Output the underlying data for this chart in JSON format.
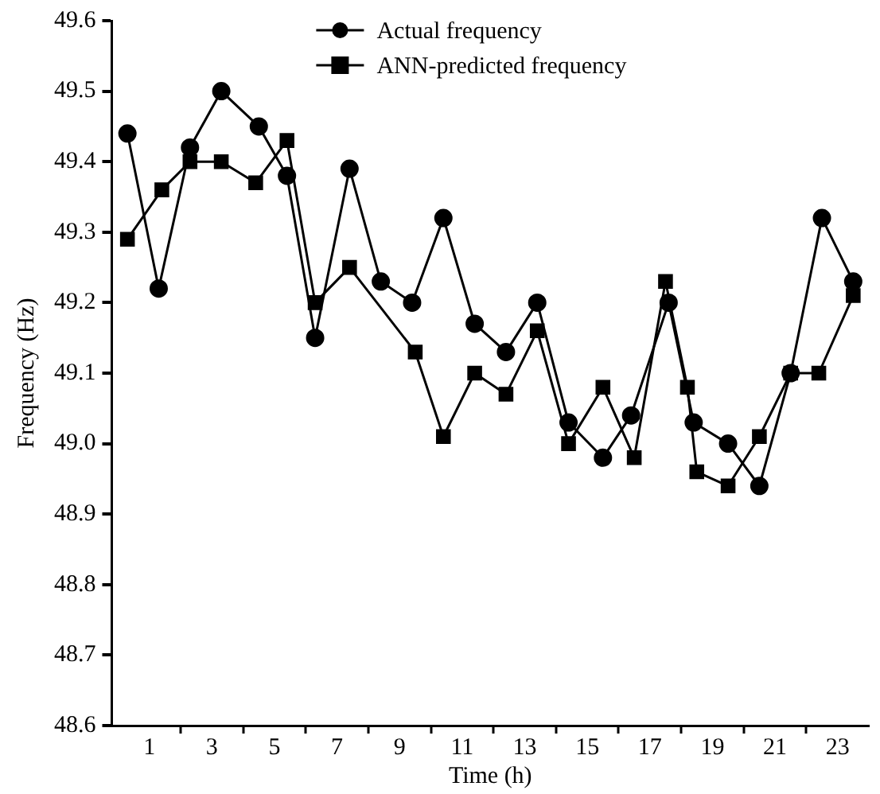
{
  "chart_data": {
    "type": "line",
    "xlabel": "Time (h)",
    "ylabel": "Frequency (Hz)",
    "xlim": [
      -0.2,
      24
    ],
    "xticks": [
      {
        "value": 1,
        "label": "1"
      },
      {
        "value": 2,
        "label": null
      },
      {
        "value": 3,
        "label": "3"
      },
      {
        "value": 4,
        "label": null
      },
      {
        "value": 5,
        "label": "5"
      },
      {
        "value": 6,
        "label": null
      },
      {
        "value": 7,
        "label": "7"
      },
      {
        "value": 8,
        "label": null
      },
      {
        "value": 9,
        "label": "9"
      },
      {
        "value": 10,
        "label": null
      },
      {
        "value": 11,
        "label": "11"
      },
      {
        "value": 12,
        "label": null
      },
      {
        "value": 13,
        "label": "13"
      },
      {
        "value": 14,
        "label": null
      },
      {
        "value": 15,
        "label": "15"
      },
      {
        "value": 16,
        "label": null
      },
      {
        "value": 17,
        "label": "17"
      },
      {
        "value": 18,
        "label": null
      },
      {
        "value": 19,
        "label": "19"
      },
      {
        "value": 20,
        "label": null
      },
      {
        "value": 21,
        "label": "21"
      },
      {
        "value": 22,
        "label": null
      },
      {
        "value": 23,
        "label": "23"
      }
    ],
    "ylim": [
      48.6,
      49.6
    ],
    "yticks": [
      48.6,
      48.7,
      48.8,
      48.9,
      {
        "value": 49,
        "label": "49.0"
      },
      49.1,
      49.2,
      49.3,
      49.4,
      49.5,
      49.6
    ],
    "legend": "top",
    "grid": false,
    "line_style": "solid",
    "series": [
      {
        "name": "Actual frequency",
        "color": "#000000",
        "marker": "circle",
        "x": [
          0.3,
          1.3,
          2.3,
          3.3,
          4.5,
          5.4,
          6.3,
          7.4,
          8.4,
          9.4,
          10.4,
          11.4,
          12.4,
          13.4,
          14.4,
          15.5,
          16.4,
          17.6,
          18.4,
          19.5,
          20.5,
          21.5,
          22.5,
          23.5
        ],
        "values": [
          49.44,
          49.22,
          49.42,
          49.5,
          49.45,
          49.38,
          49.15,
          49.39,
          49.23,
          49.2,
          49.32,
          49.17,
          49.13,
          49.2,
          49.03,
          48.98,
          49.04,
          49.2,
          49.03,
          49.0,
          48.94,
          49.1,
          49.32,
          49.23
        ]
      },
      {
        "name": "ANN-predicted frequency",
        "color": "#000000",
        "marker": "square",
        "x": [
          0.3,
          1.4,
          2.3,
          3.3,
          4.4,
          5.4,
          6.3,
          7.4,
          9.5,
          10.4,
          11.4,
          12.4,
          13.4,
          14.4,
          15.5,
          16.5,
          17.5,
          18.2,
          18.5,
          19.5,
          20.5,
          21.5,
          22.4,
          23.5
        ],
        "values": [
          49.29,
          49.36,
          49.4,
          49.4,
          49.37,
          49.43,
          49.2,
          49.25,
          49.13,
          49.01,
          49.1,
          49.07,
          49.16,
          49.0,
          49.08,
          48.98,
          49.23,
          49.08,
          48.96,
          48.94,
          49.01,
          49.1,
          49.1,
          49.21
        ]
      }
    ]
  }
}
